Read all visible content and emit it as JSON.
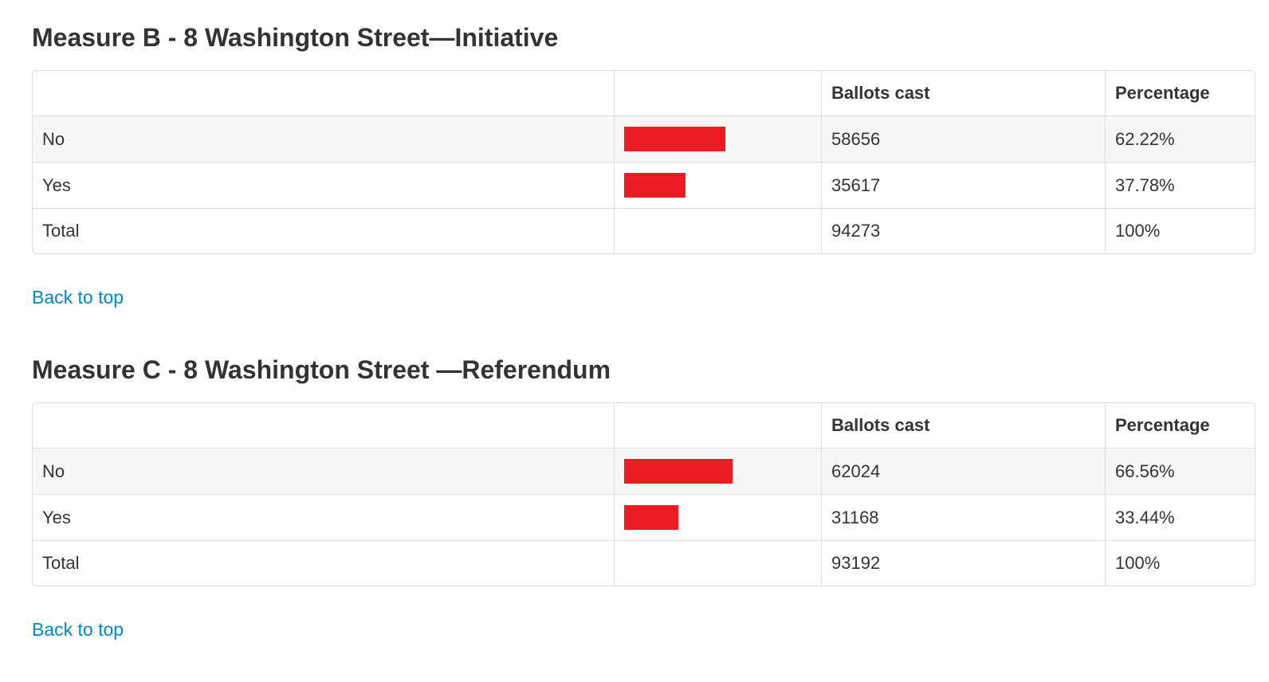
{
  "colors": {
    "bar_red": "#ed1c24",
    "link_blue": "#0088cc",
    "row_stripe": "#f7f7f7",
    "table_border": "#dddddd",
    "text": "#333333"
  },
  "sections": [
    {
      "heading": "Measure B - 8 Washington Street—Initiative",
      "back_to_top_label": "Back to top",
      "table": {
        "headers": {
          "label": "",
          "bar": "",
          "ballots": "Ballots cast",
          "percentage": "Percentage"
        },
        "rows": [
          {
            "label": "No",
            "ballots": "58656",
            "percentage": "62.22%",
            "pct_value": 62.22
          },
          {
            "label": "Yes",
            "ballots": "35617",
            "percentage": "37.78%",
            "pct_value": 37.78
          },
          {
            "label": "Total",
            "ballots": "94273",
            "percentage": "100%"
          }
        ]
      }
    },
    {
      "heading": "Measure C - 8 Washington Street —Referendum",
      "back_to_top_label": "Back to top",
      "table": {
        "headers": {
          "label": "",
          "bar": "",
          "ballots": "Ballots cast",
          "percentage": "Percentage"
        },
        "rows": [
          {
            "label": "No",
            "ballots": "62024",
            "percentage": "66.56%",
            "pct_value": 66.56
          },
          {
            "label": "Yes",
            "ballots": "31168",
            "percentage": "33.44%",
            "pct_value": 33.44
          },
          {
            "label": "Total",
            "ballots": "93192",
            "percentage": "100%"
          }
        ]
      }
    }
  ],
  "chart_data": [
    {
      "type": "bar",
      "orientation": "horizontal",
      "title": "Measure B - 8 Washington Street—Initiative",
      "categories": [
        "No",
        "Yes",
        "Total"
      ],
      "series": [
        {
          "name": "Ballots cast",
          "values": [
            58656,
            35617,
            94273
          ]
        },
        {
          "name": "Percentage",
          "values": [
            62.22,
            37.78,
            100
          ]
        }
      ],
      "bars_drawn_for": [
        "No",
        "Yes"
      ],
      "bar_values_percent": [
        62.22,
        37.78
      ],
      "bar_color": "#ed1c24",
      "xlabel": "",
      "ylabel": "",
      "axis_range_percent": [
        0,
        100
      ],
      "grid": false,
      "legend": "none"
    },
    {
      "type": "bar",
      "orientation": "horizontal",
      "title": "Measure C - 8 Washington Street —Referendum",
      "categories": [
        "No",
        "Yes",
        "Total"
      ],
      "series": [
        {
          "name": "Ballots cast",
          "values": [
            62024,
            31168,
            93192
          ]
        },
        {
          "name": "Percentage",
          "values": [
            66.56,
            33.44,
            100
          ]
        }
      ],
      "bars_drawn_for": [
        "No",
        "Yes"
      ],
      "bar_values_percent": [
        66.56,
        33.44
      ],
      "bar_color": "#ed1c24",
      "xlabel": "",
      "ylabel": "",
      "axis_range_percent": [
        0,
        100
      ],
      "grid": false,
      "legend": "none"
    }
  ]
}
